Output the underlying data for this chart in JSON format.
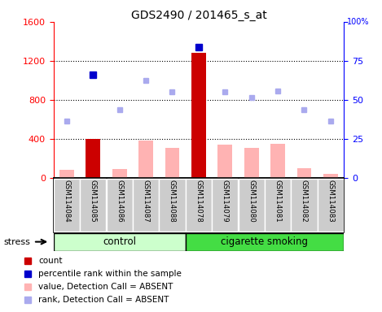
{
  "title": "GDS2490 / 201465_s_at",
  "samples": [
    "GSM114084",
    "GSM114085",
    "GSM114086",
    "GSM114087",
    "GSM114088",
    "GSM114078",
    "GSM114079",
    "GSM114080",
    "GSM114081",
    "GSM114082",
    "GSM114083"
  ],
  "control_count": 5,
  "groups": [
    "control",
    "cigarette smoking"
  ],
  "ylim_left": [
    0,
    1600
  ],
  "ylim_right": [
    0,
    100
  ],
  "yticks_left": [
    0,
    400,
    800,
    1200,
    1600
  ],
  "yticks_right": [
    0,
    25,
    50,
    75,
    100
  ],
  "bar_values": [
    80,
    400,
    90,
    380,
    310,
    1280,
    340,
    310,
    350,
    100,
    40
  ],
  "bar_colors": [
    "#ffb3b3",
    "#cc0000",
    "#ffb3b3",
    "#ffb3b3",
    "#ffb3b3",
    "#cc0000",
    "#ffb3b3",
    "#ffb3b3",
    "#ffb3b3",
    "#ffb3b3",
    "#ffb3b3"
  ],
  "rank_dots": [
    null,
    1060,
    null,
    null,
    null,
    1340,
    null,
    null,
    null,
    null,
    null
  ],
  "rank_dot_color": "#0000cc",
  "value_absent_dots": [
    580,
    null,
    700,
    1000,
    880,
    null,
    880,
    820,
    890,
    700,
    580
  ],
  "value_absent_color": "#aaaaee",
  "legend_labels": [
    "count",
    "percentile rank within the sample",
    "value, Detection Call = ABSENT",
    "rank, Detection Call = ABSENT"
  ],
  "legend_colors": [
    "#cc0000",
    "#0000cc",
    "#ffb3b3",
    "#aaaaee"
  ],
  "stress_label": "stress",
  "group_bg_color_control": "#ccffcc",
  "group_bg_color_smoking": "#44dd44",
  "sample_bg_color": "#cccccc",
  "fig_bg_color": "#ffffff"
}
